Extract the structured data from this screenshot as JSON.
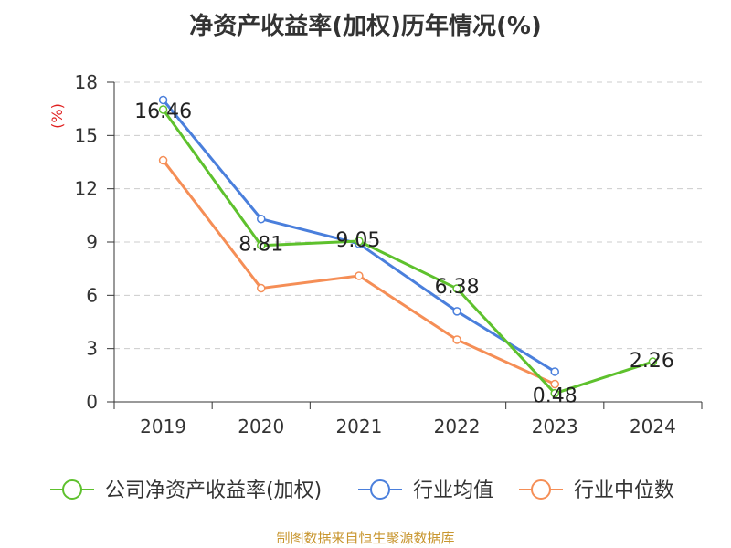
{
  "chart_data": {
    "type": "line",
    "title": "净资产收益率(加权)历年情况(%)",
    "ylabel": "(%)",
    "xlabel": "",
    "categories": [
      "2019",
      "2020",
      "2021",
      "2022",
      "2023",
      "2024"
    ],
    "ylim": [
      0,
      18
    ],
    "yticks": [
      0,
      3,
      6,
      9,
      12,
      15,
      18
    ],
    "grid": true,
    "legend_position": "bottom",
    "series": [
      {
        "name": "公司净资产收益率(加权)",
        "color": "#5ec12d",
        "values": [
          16.46,
          8.81,
          9.05,
          6.38,
          0.48,
          2.26
        ],
        "labels": [
          "16.46",
          "8.81",
          "9.05",
          "6.38",
          "0.48",
          "2.26"
        ]
      },
      {
        "name": "行业均值",
        "color": "#4a7fdc",
        "values": [
          17.0,
          10.3,
          8.9,
          5.1,
          1.7,
          null
        ]
      },
      {
        "name": "行业中位数",
        "color": "#f58e56",
        "values": [
          13.6,
          6.4,
          7.1,
          3.5,
          1.0,
          null
        ]
      }
    ]
  },
  "source": "制图数据来自恒生聚源数据库"
}
